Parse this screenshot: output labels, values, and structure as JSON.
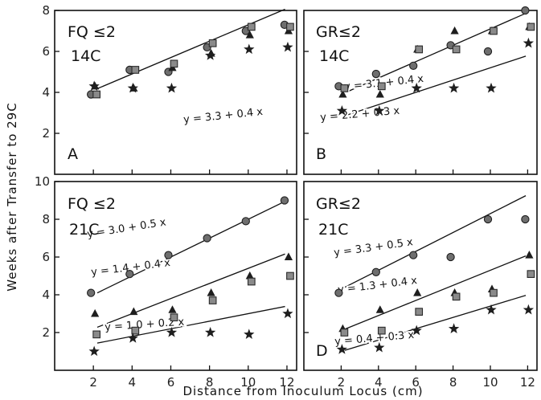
{
  "axes": {
    "xlabel": "Distance from Inoculum Locus (cm)",
    "ylabel": "Weeks after Transfer to 29C"
  },
  "marker_shapes": [
    "circle",
    "triangle",
    "square",
    "star"
  ],
  "chart_data": [
    {
      "type": "scatter",
      "panel": "A",
      "labels": [
        "FQ ≤2",
        "14C"
      ],
      "xlim": [
        0,
        12.5
      ],
      "ylim": [
        0,
        8
      ],
      "xticks": [],
      "yticks": [
        2,
        4,
        6,
        8
      ],
      "series": [
        {
          "marker": "circle",
          "x": [
            2,
            4,
            6,
            8,
            10,
            12
          ],
          "y": [
            3.9,
            5.1,
            5.0,
            6.2,
            7.0,
            7.3
          ]
        },
        {
          "marker": "triangle",
          "x": [
            2,
            4,
            6,
            8,
            10,
            12
          ],
          "y": [
            4.3,
            4.2,
            5.2,
            5.9,
            6.8,
            7.0
          ]
        },
        {
          "marker": "square",
          "x": [
            2,
            4,
            6,
            8,
            10,
            12
          ],
          "y": [
            3.9,
            5.1,
            5.4,
            6.4,
            7.2,
            7.2
          ]
        },
        {
          "marker": "star",
          "x": [
            2,
            4,
            6,
            8,
            10,
            12
          ],
          "y": [
            4.3,
            4.2,
            4.2,
            5.8,
            6.1,
            6.2
          ]
        }
      ],
      "fits": [
        {
          "equation": "y = 3.3 + 0.4 x",
          "intercept": 3.3,
          "slope": 0.4,
          "x_range": [
            2,
            12
          ]
        }
      ]
    },
    {
      "type": "scatter",
      "panel": "B",
      "labels": [
        "GR≤2",
        "14C"
      ],
      "xlim": [
        0,
        12.5
      ],
      "ylim": [
        0,
        8
      ],
      "xticks": [],
      "yticks": [],
      "series": [
        {
          "marker": "circle",
          "x": [
            2,
            4,
            6,
            8,
            10,
            12
          ],
          "y": [
            4.3,
            4.9,
            5.3,
            6.3,
            6.0,
            8.0
          ]
        },
        {
          "marker": "triangle",
          "x": [
            2,
            4,
            6,
            8,
            10,
            12
          ],
          "y": [
            3.9,
            3.9,
            6.1,
            7.0,
            7.0,
            7.2
          ]
        },
        {
          "marker": "square",
          "x": [
            2,
            4,
            6,
            8,
            10,
            12
          ],
          "y": [
            4.2,
            4.3,
            6.1,
            6.1,
            7.0,
            7.2
          ]
        },
        {
          "marker": "star",
          "x": [
            2,
            4,
            6,
            8,
            10,
            12
          ],
          "y": [
            3.1,
            3.1,
            4.2,
            4.2,
            4.2,
            6.4
          ]
        }
      ],
      "fits": [
        {
          "equation": "y = 3.1 + 0.4 x",
          "intercept": 3.1,
          "slope": 0.4,
          "x_range": [
            2,
            12
          ]
        },
        {
          "equation": "y = 2.2 + 0.3 x",
          "intercept": 2.2,
          "slope": 0.3,
          "x_range": [
            2,
            12
          ]
        }
      ]
    },
    {
      "type": "scatter",
      "panel": "C",
      "labels": [
        "FQ ≤2",
        "21C"
      ],
      "xlim": [
        0,
        12.5
      ],
      "ylim": [
        0,
        10
      ],
      "xticks": [
        2,
        4,
        6,
        8,
        10,
        12
      ],
      "yticks": [
        2,
        4,
        6,
        8,
        10
      ],
      "series": [
        {
          "marker": "circle",
          "x": [
            2,
            4,
            6,
            8,
            10,
            12
          ],
          "y": [
            4.1,
            5.1,
            6.1,
            7.0,
            7.9,
            9.0
          ]
        },
        {
          "marker": "triangle",
          "x": [
            2,
            4,
            6,
            8,
            10,
            12
          ],
          "y": [
            3.0,
            3.1,
            3.2,
            4.1,
            5.0,
            6.0
          ]
        },
        {
          "marker": "square",
          "x": [
            2,
            4,
            6,
            8,
            10,
            12
          ],
          "y": [
            1.9,
            2.1,
            2.8,
            3.7,
            4.7,
            5.0
          ]
        },
        {
          "marker": "star",
          "x": [
            2,
            4,
            6,
            8,
            10,
            12
          ],
          "y": [
            1.0,
            1.7,
            2.0,
            2.0,
            1.9,
            3.0
          ]
        }
      ],
      "fits": [
        {
          "equation": "y = 3.0 + 0.5 x",
          "intercept": 3.0,
          "slope": 0.5,
          "x_range": [
            2,
            12
          ]
        },
        {
          "equation": "y = 1.4 + 0.4 x",
          "intercept": 1.4,
          "slope": 0.4,
          "x_range": [
            2,
            12
          ]
        },
        {
          "equation": "y = 1.0 + 0.2 x",
          "intercept": 1.0,
          "slope": 0.2,
          "x_range": [
            2,
            12
          ]
        }
      ]
    },
    {
      "type": "scatter",
      "panel": "D",
      "labels": [
        "GR≤2",
        "21C"
      ],
      "xlim": [
        0,
        12.5
      ],
      "ylim": [
        0,
        10
      ],
      "xticks": [
        2,
        4,
        6,
        8,
        10,
        12
      ],
      "yticks": [],
      "series": [
        {
          "marker": "circle",
          "x": [
            2,
            4,
            6,
            8,
            10,
            12
          ],
          "y": [
            4.1,
            5.2,
            6.1,
            6.0,
            8.0,
            8.0
          ]
        },
        {
          "marker": "triangle",
          "x": [
            2,
            4,
            6,
            8,
            10,
            12
          ],
          "y": [
            2.2,
            3.2,
            4.1,
            4.1,
            4.3,
            6.1
          ]
        },
        {
          "marker": "square",
          "x": [
            2,
            4,
            6,
            8,
            10,
            12
          ],
          "y": [
            2.0,
            2.1,
            3.1,
            3.9,
            4.1,
            5.1
          ]
        },
        {
          "marker": "star",
          "x": [
            2,
            4,
            6,
            8,
            10,
            12
          ],
          "y": [
            1.1,
            1.2,
            2.1,
            2.2,
            3.2,
            3.2
          ]
        }
      ],
      "fits": [
        {
          "equation": "y = 3.3 + 0.5 x",
          "intercept": 3.3,
          "slope": 0.5,
          "x_range": [
            2,
            12
          ]
        },
        {
          "equation": "y = 1.3 + 0.4 x",
          "intercept": 1.3,
          "slope": 0.4,
          "x_range": [
            2,
            12
          ]
        },
        {
          "equation": "y = 0.4 + 0.3 x",
          "intercept": 0.4,
          "slope": 0.3,
          "x_range": [
            2,
            12
          ]
        }
      ]
    }
  ]
}
